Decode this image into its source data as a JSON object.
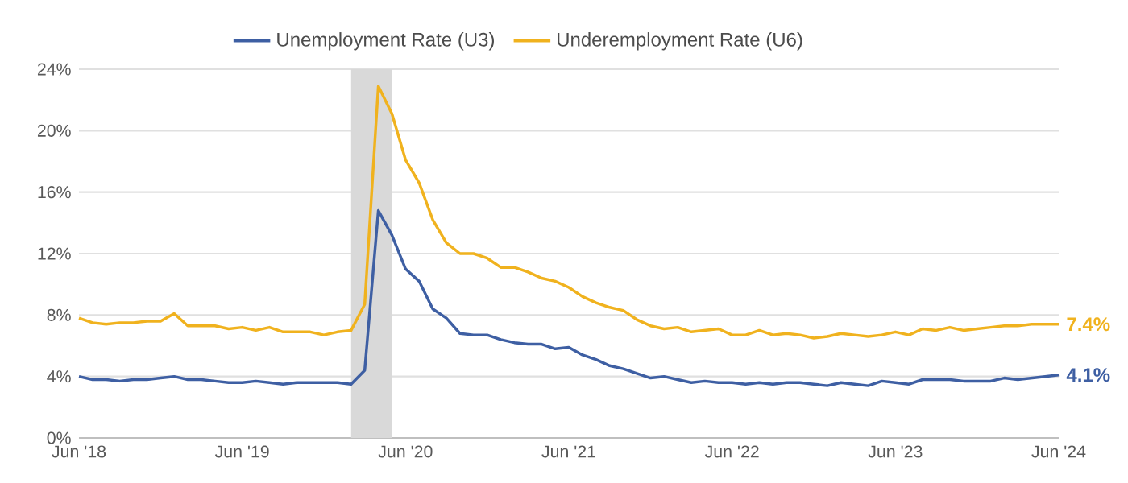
{
  "chart_data": {
    "type": "line",
    "x": [
      "2018-06",
      "2018-07",
      "2018-08",
      "2018-09",
      "2018-10",
      "2018-11",
      "2018-12",
      "2019-01",
      "2019-02",
      "2019-03",
      "2019-04",
      "2019-05",
      "2019-06",
      "2019-07",
      "2019-08",
      "2019-09",
      "2019-10",
      "2019-11",
      "2019-12",
      "2020-01",
      "2020-02",
      "2020-03",
      "2020-04",
      "2020-05",
      "2020-06",
      "2020-07",
      "2020-08",
      "2020-09",
      "2020-10",
      "2020-11",
      "2020-12",
      "2021-01",
      "2021-02",
      "2021-03",
      "2021-04",
      "2021-05",
      "2021-06",
      "2021-07",
      "2021-08",
      "2021-09",
      "2021-10",
      "2021-11",
      "2021-12",
      "2022-01",
      "2022-02",
      "2022-03",
      "2022-04",
      "2022-05",
      "2022-06",
      "2022-07",
      "2022-08",
      "2022-09",
      "2022-10",
      "2022-11",
      "2022-12",
      "2023-01",
      "2023-02",
      "2023-03",
      "2023-04",
      "2023-05",
      "2023-06",
      "2023-07",
      "2023-08",
      "2023-09",
      "2023-10",
      "2023-11",
      "2023-12",
      "2024-01",
      "2024-02",
      "2024-03",
      "2024-04",
      "2024-05",
      "2024-06"
    ],
    "series": [
      {
        "name": "Unemployment Rate (U3)",
        "color": "#3e5fa3",
        "values": [
          4.0,
          3.8,
          3.8,
          3.7,
          3.8,
          3.8,
          3.9,
          4.0,
          3.8,
          3.8,
          3.7,
          3.6,
          3.6,
          3.7,
          3.6,
          3.5,
          3.6,
          3.6,
          3.6,
          3.6,
          3.5,
          4.4,
          14.8,
          13.2,
          11.0,
          10.2,
          8.4,
          7.8,
          6.8,
          6.7,
          6.7,
          6.4,
          6.2,
          6.1,
          6.1,
          5.8,
          5.9,
          5.4,
          5.1,
          4.7,
          4.5,
          4.2,
          3.9,
          4.0,
          3.8,
          3.6,
          3.7,
          3.6,
          3.6,
          3.5,
          3.6,
          3.5,
          3.6,
          3.6,
          3.5,
          3.4,
          3.6,
          3.5,
          3.4,
          3.7,
          3.6,
          3.5,
          3.8,
          3.8,
          3.8,
          3.7,
          3.7,
          3.7,
          3.9,
          3.8,
          3.9,
          4.0,
          4.1
        ]
      },
      {
        "name": "Underemployment Rate (U6)",
        "color": "#f0b21e",
        "values": [
          7.8,
          7.5,
          7.4,
          7.5,
          7.5,
          7.6,
          7.6,
          8.1,
          7.3,
          7.3,
          7.3,
          7.1,
          7.2,
          7.0,
          7.2,
          6.9,
          6.9,
          6.9,
          6.7,
          6.9,
          7.0,
          8.7,
          22.9,
          21.1,
          18.1,
          16.6,
          14.2,
          12.7,
          12.0,
          12.0,
          11.7,
          11.1,
          11.1,
          10.8,
          10.4,
          10.2,
          9.8,
          9.2,
          8.8,
          8.5,
          8.3,
          7.7,
          7.3,
          7.1,
          7.2,
          6.9,
          7.0,
          7.1,
          6.7,
          6.7,
          7.0,
          6.7,
          6.8,
          6.7,
          6.5,
          6.6,
          6.8,
          6.7,
          6.6,
          6.7,
          6.9,
          6.7,
          7.1,
          7.0,
          7.2,
          7.0,
          7.1,
          7.2,
          7.3,
          7.3,
          7.4,
          7.4,
          7.4
        ]
      }
    ],
    "xlim": [
      "2018-06",
      "2024-06"
    ],
    "xticks": [
      {
        "value": "2018-06",
        "label": "Jun '18"
      },
      {
        "value": "2019-06",
        "label": "Jun '19"
      },
      {
        "value": "2020-06",
        "label": "Jun '20"
      },
      {
        "value": "2021-06",
        "label": "Jun '21"
      },
      {
        "value": "2022-06",
        "label": "Jun '22"
      },
      {
        "value": "2023-06",
        "label": "Jun '23"
      },
      {
        "value": "2024-06",
        "label": "Jun '24"
      }
    ],
    "ylim": [
      0,
      24
    ],
    "yticks": [
      {
        "value": 0,
        "label": "0%"
      },
      {
        "value": 4,
        "label": "4%"
      },
      {
        "value": 8,
        "label": "8%"
      },
      {
        "value": 12,
        "label": "12%"
      },
      {
        "value": 16,
        "label": "16%"
      },
      {
        "value": 20,
        "label": "20%"
      },
      {
        "value": 24,
        "label": "24%"
      }
    ],
    "bands": [
      {
        "axis": "x",
        "from": "2020-02",
        "to": "2020-05",
        "color": "#d9d9d9"
      }
    ],
    "annotations": [
      {
        "text": "4.1%",
        "x": "2024-06",
        "y": 4.1
      },
      {
        "text": "7.4%",
        "x": "2024-06",
        "y": 7.4
      }
    ],
    "grid": "y",
    "legend": "top"
  }
}
